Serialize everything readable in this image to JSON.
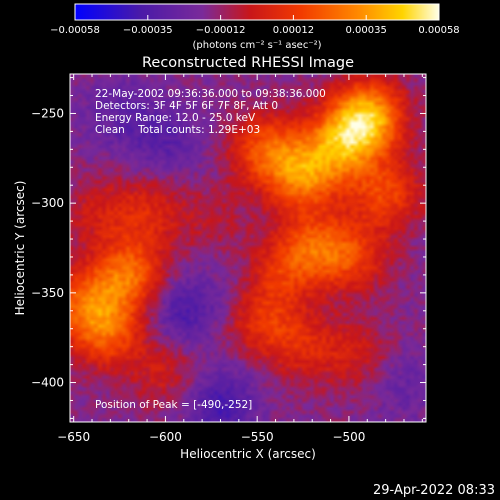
{
  "title": "Reconstructed RHESSI Image",
  "xlabel": "Heliocentric X (arcsec)",
  "ylabel": "Heliocentric Y (arcsec)",
  "overlay": {
    "line1": "22-May-2002 09:36:36.000 to 09:38:36.000",
    "line2": "Detectors: 3F 4F 5F 6F 7F 8F, Att 0",
    "line3": "Energy Range: 12.0 - 25.0 keV",
    "line4": "Clean    Total counts: 1.29E+03",
    "peak": "Position of Peak = [-490,-252]"
  },
  "colorbar": {
    "ticks": [
      "-0.00058",
      "-0.00035",
      "-0.00012",
      "0.00012",
      "0.00035",
      "0.00058"
    ],
    "units": "(photons cm⁻² s⁻¹ asec⁻²)"
  },
  "timestamp": "29-Apr-2022 08:33",
  "chart_data": {
    "type": "heatmap",
    "title": "Reconstructed RHESSI Image",
    "xlabel": "Heliocentric X (arcsec)",
    "ylabel": "Heliocentric Y (arcsec)",
    "xlim": [
      -652,
      -458
    ],
    "ylim": [
      -422,
      -228
    ],
    "xticks": [
      -650,
      -600,
      -550,
      -500
    ],
    "yticks": [
      -250,
      -300,
      -350,
      -400
    ],
    "colorbar_range": [
      -0.00058,
      0.00058
    ],
    "colormap": "blue-purple-red-orange-yellow-white",
    "peak_position": [
      -490,
      -252
    ],
    "sources": [
      {
        "x": -490,
        "y": -252,
        "amp": 0.00058
      },
      {
        "x": -505,
        "y": -268,
        "amp": 0.0004
      },
      {
        "x": -525,
        "y": -285,
        "amp": 0.0004
      },
      {
        "x": -480,
        "y": -295,
        "amp": 0.0003
      },
      {
        "x": -545,
        "y": -270,
        "amp": 0.00034
      },
      {
        "x": -520,
        "y": -325,
        "amp": 0.00032
      },
      {
        "x": -498,
        "y": -330,
        "amp": 0.00026
      },
      {
        "x": -540,
        "y": -340,
        "amp": 0.00022
      },
      {
        "x": -548,
        "y": -365,
        "amp": 0.00024
      },
      {
        "x": -525,
        "y": -380,
        "amp": 0.0002
      },
      {
        "x": -495,
        "y": -385,
        "amp": 0.00016
      },
      {
        "x": -620,
        "y": -340,
        "amp": 0.0004
      },
      {
        "x": -632,
        "y": -372,
        "amp": 0.00034
      },
      {
        "x": -645,
        "y": -355,
        "amp": 0.0003
      },
      {
        "x": -610,
        "y": -305,
        "amp": 0.0002
      },
      {
        "x": -600,
        "y": -395,
        "amp": 0.00016
      },
      {
        "x": -575,
        "y": -310,
        "amp": 0.0001
      },
      {
        "x": -638,
        "y": -305,
        "amp": 0.00014
      },
      {
        "x": -625,
        "y": -250,
        "amp": -0.00012
      },
      {
        "x": -590,
        "y": -360,
        "amp": -0.0002
      },
      {
        "x": -570,
        "y": -412,
        "amp": -0.00022
      },
      {
        "x": -600,
        "y": -265,
        "amp": -0.00014
      },
      {
        "x": -555,
        "y": -345,
        "amp": -8e-05
      },
      {
        "x": -470,
        "y": -400,
        "amp": -0.0001
      }
    ]
  },
  "colors": {
    "background": "#000000",
    "text": "#ffffff"
  }
}
